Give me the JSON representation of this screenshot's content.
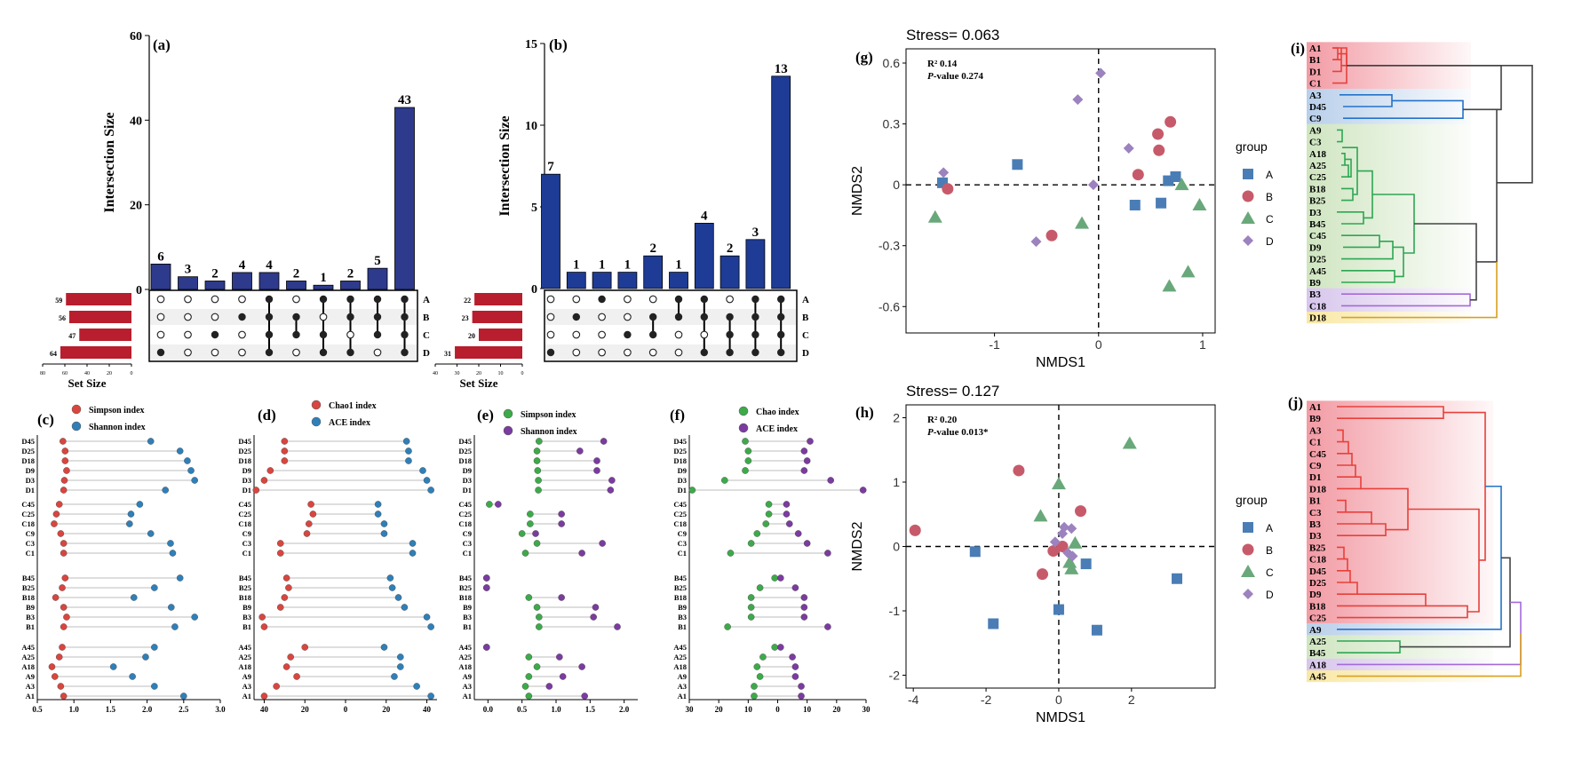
{
  "panel_labels": {
    "a": "(a)",
    "b": "(b)",
    "c": "(c)",
    "d": "(d)",
    "e": "(e)",
    "f": "(f)",
    "g": "(g)",
    "h": "(h)",
    "i": "(i)",
    "j": "(j)"
  },
  "upset_text": {
    "ylabel": "Intersection Size",
    "xlabel": "Set Size",
    "sets": [
      "A",
      "B",
      "C",
      "D"
    ]
  },
  "lollipop_legend": {
    "c": [
      "Simpson index",
      "Shannon index"
    ],
    "d": [
      "Chao1 index",
      "ACE index"
    ],
    "e": [
      "Simpson index",
      "Shannon index"
    ],
    "f": [
      "Chao index",
      "ACE index"
    ]
  },
  "nmds_text": {
    "g": {
      "stress": "Stress= 0.063",
      "r2": "R² 0.14",
      "p_label": "P",
      "p_rest": "-value  0.274"
    },
    "h": {
      "stress": "Stress= 0.127",
      "r2": "R² 0.20",
      "p_label": "P",
      "p_rest": "-value  0.013*"
    },
    "xlabel": "NMDS1",
    "ylabel": "NMDS2",
    "legend_title": "group",
    "legend": [
      "A",
      "B",
      "C",
      "D"
    ]
  },
  "colors": {
    "upset_bar_a": "#2E3A8C",
    "upset_bar_b": "#1E3C96",
    "set_bar": "#B81E2D",
    "red_dot": "#D9453F",
    "blue_dot": "#2F7FB8",
    "green_dot": "#3DAA4A",
    "purple_dot": "#7B3BA0",
    "nmds_A": "#4A7DB5",
    "nmds_B": "#C75A6A",
    "nmds_C": "#69A87A",
    "nmds_D": "#9C82BE"
  },
  "chart_data": [
    {
      "panel": "a",
      "type": "bar",
      "ylim": [
        0,
        60
      ],
      "yticks": [
        0,
        20,
        40,
        60
      ],
      "values": [
        6,
        3,
        2,
        4,
        4,
        2,
        1,
        2,
        5,
        43
      ],
      "matrix": [
        [
          0,
          0,
          0,
          0,
          1,
          0,
          1,
          1,
          1,
          1
        ],
        [
          0,
          0,
          0,
          1,
          1,
          1,
          0,
          1,
          1,
          1
        ],
        [
          0,
          0,
          1,
          0,
          1,
          1,
          1,
          0,
          1,
          1
        ],
        [
          1,
          0,
          0,
          0,
          1,
          0,
          1,
          1,
          0,
          1
        ]
      ],
      "set_sizes": [
        59,
        56,
        47,
        64
      ],
      "set_xlim": [
        80,
        0
      ],
      "set_xticks": [
        80,
        60,
        40,
        20,
        0
      ]
    },
    {
      "panel": "b",
      "type": "bar",
      "ylim": [
        0,
        15
      ],
      "yticks": [
        0,
        5,
        10,
        15
      ],
      "values": [
        7,
        1,
        1,
        1,
        2,
        1,
        4,
        2,
        3,
        13
      ],
      "matrix": [
        [
          0,
          0,
          1,
          0,
          0,
          1,
          1,
          0,
          1,
          1
        ],
        [
          0,
          1,
          0,
          0,
          1,
          1,
          1,
          1,
          1,
          1
        ],
        [
          0,
          0,
          0,
          1,
          1,
          0,
          0,
          1,
          1,
          1
        ],
        [
          1,
          0,
          0,
          0,
          0,
          0,
          1,
          1,
          1,
          1
        ]
      ],
      "set_sizes": [
        22,
        23,
        20,
        31
      ],
      "set_xlim": [
        40,
        0
      ],
      "set_xticks": [
        40,
        30,
        20,
        10,
        0
      ]
    },
    {
      "panel": "c",
      "type": "scatter",
      "xlim": [
        0.5,
        3.0
      ],
      "xticks": [
        "0.5",
        "1.0",
        "1.5",
        "2.0",
        "2.5",
        "3.0"
      ],
      "tickvals": [
        0.5,
        1,
        1.5,
        2,
        2.5,
        3
      ],
      "groups": [
        [
          "D45",
          "D25",
          "D18",
          "D9",
          "D3",
          "D1"
        ],
        [
          "C45",
          "C25",
          "C18",
          "C9",
          "C3",
          "C1"
        ],
        [
          "B45",
          "B25",
          "B18",
          "B9",
          "B3",
          "B1"
        ],
        [
          "A45",
          "A25",
          "A18",
          "A9",
          "A3",
          "A1"
        ]
      ],
      "red": [
        [
          0.85,
          0.88,
          0.88,
          0.9,
          0.87,
          0.86
        ],
        [
          0.8,
          0.76,
          0.73,
          0.82,
          0.86,
          0.86
        ],
        [
          0.88,
          0.84,
          0.75,
          0.86,
          0.9,
          0.86
        ],
        [
          0.84,
          0.8,
          0.7,
          0.74,
          0.82,
          0.86
        ]
      ],
      "blue": [
        [
          2.05,
          2.45,
          2.55,
          2.6,
          2.65,
          2.25
        ],
        [
          1.9,
          1.78,
          1.76,
          2.05,
          2.32,
          2.35
        ],
        [
          2.45,
          2.1,
          1.82,
          2.33,
          2.65,
          2.38
        ],
        [
          2.1,
          1.98,
          1.54,
          1.8,
          2.1,
          2.5
        ]
      ]
    },
    {
      "panel": "d",
      "type": "scatter",
      "xlim": [
        -45,
        45
      ],
      "xticks": [
        "40",
        "20",
        "0",
        "20",
        "40"
      ],
      "tickvals": [
        -40,
        -20,
        0,
        20,
        40
      ],
      "groups": [
        [
          "D45",
          "D25",
          "D18",
          "D9",
          "D3",
          "D1"
        ],
        [
          "C45",
          "C25",
          "C18",
          "C9",
          "C3",
          "C1"
        ],
        [
          "B45",
          "B25",
          "B18",
          "B9",
          "B3",
          "B1"
        ],
        [
          "A45",
          "A25",
          "A18",
          "A9",
          "A3",
          "A1"
        ]
      ],
      "red": [
        [
          -30,
          -30,
          -30,
          -37,
          -40,
          -44
        ],
        [
          -17,
          -16,
          -18,
          -19,
          -32,
          -32
        ],
        [
          -29,
          -28,
          -30,
          -32,
          -41,
          -40
        ],
        [
          -20,
          -27,
          -29,
          -24,
          -34,
          -40
        ]
      ],
      "blue": [
        [
          30,
          31,
          31,
          38,
          40,
          42
        ],
        [
          16,
          16,
          19,
          19,
          33,
          33
        ],
        [
          22,
          23,
          26,
          29,
          40,
          42
        ],
        [
          19,
          27,
          27,
          24,
          35,
          42
        ]
      ]
    },
    {
      "panel": "e",
      "type": "scatter",
      "xlim": [
        -0.2,
        2.2
      ],
      "xticks": [
        "0.0",
        "0.5",
        "1.0",
        "1.5",
        "2.0"
      ],
      "tickvals": [
        0,
        0.5,
        1,
        1.5,
        2
      ],
      "groups": [
        [
          "D45",
          "D25",
          "D18",
          "D9",
          "D3",
          "D1"
        ],
        [
          "C45",
          "C25",
          "C18",
          "C9",
          "C3",
          "C1"
        ],
        [
          "B45",
          "B25",
          "B18",
          "B9",
          "B3",
          "B1"
        ],
        [
          "A45",
          "A25",
          "A18",
          "A9",
          "A3",
          "A1"
        ]
      ],
      "green": [
        [
          0.75,
          0.72,
          0.72,
          0.73,
          0.74,
          0.74
        ],
        [
          0.02,
          0.62,
          0.62,
          0.5,
          0.72,
          0.55
        ],
        [
          -0.02,
          -0.02,
          0.6,
          0.72,
          0.75,
          0.75
        ],
        [
          -0.02,
          0.6,
          0.72,
          0.6,
          0.55,
          0.6
        ]
      ],
      "purple": [
        [
          1.7,
          1.35,
          1.6,
          1.6,
          1.82,
          1.8
        ],
        [
          0.15,
          1.08,
          1.08,
          0.7,
          1.68,
          1.38
        ],
        [
          -0.02,
          -0.02,
          1.08,
          1.58,
          1.55,
          1.9
        ],
        [
          -0.02,
          1.05,
          1.38,
          1.1,
          0.9,
          1.42
        ]
      ]
    },
    {
      "panel": "f",
      "type": "scatter",
      "xlim": [
        -30,
        30
      ],
      "xticks": [
        "30",
        "20",
        "10",
        "0",
        "10",
        "20",
        "30"
      ],
      "tickvals": [
        -30,
        -20,
        -10,
        0,
        10,
        20,
        30
      ],
      "groups": [
        [
          "D45",
          "D25",
          "D18",
          "D9",
          "D3",
          "D1"
        ],
        [
          "C45",
          "C25",
          "C18",
          "C9",
          "C3",
          "C1"
        ],
        [
          "B45",
          "B25",
          "B18",
          "B9",
          "B3",
          "B1"
        ],
        [
          "A45",
          "A25",
          "A18",
          "A9",
          "A3",
          "A1"
        ]
      ],
      "green": [
        [
          -11,
          -10,
          -10,
          -11,
          -18,
          -29
        ],
        [
          -3,
          -3,
          -4,
          -7,
          -9,
          -16
        ],
        [
          -1,
          -6,
          -9,
          -9,
          -9,
          -17
        ],
        [
          -1,
          -5,
          -7,
          -6,
          -8,
          -8
        ]
      ],
      "purple": [
        [
          11,
          9,
          10,
          9,
          18,
          29
        ],
        [
          3,
          3,
          4,
          7,
          10,
          17
        ],
        [
          1,
          6,
          9,
          9,
          9,
          17
        ],
        [
          1,
          5,
          6,
          6,
          8,
          8
        ]
      ]
    },
    {
      "panel": "g",
      "type": "scatter",
      "xlim": [
        -1.85,
        1.12
      ],
      "ylim": [
        -0.73,
        0.67
      ],
      "xticks": [
        -1,
        0,
        1
      ],
      "yticks": [
        -0.6,
        -0.3,
        0,
        0.3,
        0.6
      ],
      "series": [
        {
          "name": "A",
          "points": [
            [
              -1.5,
              0.01
            ],
            [
              -0.78,
              0.1
            ],
            [
              0.35,
              -0.1
            ],
            [
              0.6,
              -0.09
            ],
            [
              0.67,
              0.02
            ],
            [
              0.74,
              0.04
            ]
          ]
        },
        {
          "name": "B",
          "points": [
            [
              -1.45,
              -0.02
            ],
            [
              -0.45,
              -0.25
            ],
            [
              0.38,
              0.05
            ],
            [
              0.57,
              0.25
            ],
            [
              0.58,
              0.17
            ],
            [
              0.69,
              0.31
            ]
          ]
        },
        {
          "name": "C",
          "points": [
            [
              -1.57,
              -0.16
            ],
            [
              -0.16,
              -0.19
            ],
            [
              0.68,
              -0.5
            ],
            [
              0.8,
              0.0
            ],
            [
              0.86,
              -0.43
            ],
            [
              0.97,
              -0.1
            ]
          ]
        },
        {
          "name": "D",
          "points": [
            [
              -1.49,
              0.06
            ],
            [
              -0.6,
              -0.28
            ],
            [
              -0.05,
              0.0
            ],
            [
              -0.2,
              0.42
            ],
            [
              0.02,
              0.55
            ],
            [
              0.29,
              0.18
            ]
          ]
        }
      ]
    },
    {
      "panel": "h",
      "type": "scatter",
      "xlim": [
        -4.2,
        4.3
      ],
      "ylim": [
        -2.2,
        2.2
      ],
      "xticks": [
        -4,
        -2,
        0,
        2
      ],
      "yticks": [
        -2,
        -1,
        0,
        1,
        2
      ],
      "series": [
        {
          "name": "A",
          "points": [
            [
              -2.3,
              -0.08
            ],
            [
              -1.8,
              -1.2
            ],
            [
              0.0,
              -0.98
            ],
            [
              0.75,
              -0.27
            ],
            [
              1.05,
              -1.3
            ],
            [
              3.25,
              -0.5
            ]
          ]
        },
        {
          "name": "B",
          "points": [
            [
              -3.95,
              0.25
            ],
            [
              -1.1,
              1.18
            ],
            [
              -0.45,
              -0.43
            ],
            [
              -0.15,
              -0.07
            ],
            [
              0.1,
              0.0
            ],
            [
              0.6,
              0.55
            ]
          ]
        },
        {
          "name": "C",
          "points": [
            [
              -0.5,
              0.47
            ],
            [
              0.0,
              0.97
            ],
            [
              0.3,
              -0.25
            ],
            [
              0.35,
              -0.35
            ],
            [
              0.45,
              0.05
            ],
            [
              1.95,
              1.6
            ]
          ]
        },
        {
          "name": "D",
          "points": [
            [
              -0.1,
              0.07
            ],
            [
              0.1,
              0.2
            ],
            [
              0.15,
              0.3
            ],
            [
              0.35,
              0.28
            ],
            [
              0.25,
              -0.1
            ],
            [
              0.38,
              -0.15
            ]
          ]
        }
      ]
    },
    {
      "panel": "i",
      "type": "table",
      "leaves": [
        "A1",
        "B1",
        "D1",
        "C1",
        "A3",
        "D45",
        "C9",
        "A9",
        "C3",
        "A18",
        "A25",
        "C25",
        "B18",
        "B25",
        "D3",
        "B45",
        "C45",
        "D9",
        "D25",
        "A45",
        "B9",
        "B3",
        "C18",
        "D18"
      ]
    },
    {
      "panel": "j",
      "type": "table",
      "leaves": [
        "A1",
        "B9",
        "A3",
        "C1",
        "C45",
        "C9",
        "D1",
        "D18",
        "B1",
        "C3",
        "B3",
        "D3",
        "B25",
        "C18",
        "D45",
        "D25",
        "D9",
        "B18",
        "C25",
        "A9",
        "A25",
        "B45",
        "A18",
        "A45"
      ]
    }
  ]
}
